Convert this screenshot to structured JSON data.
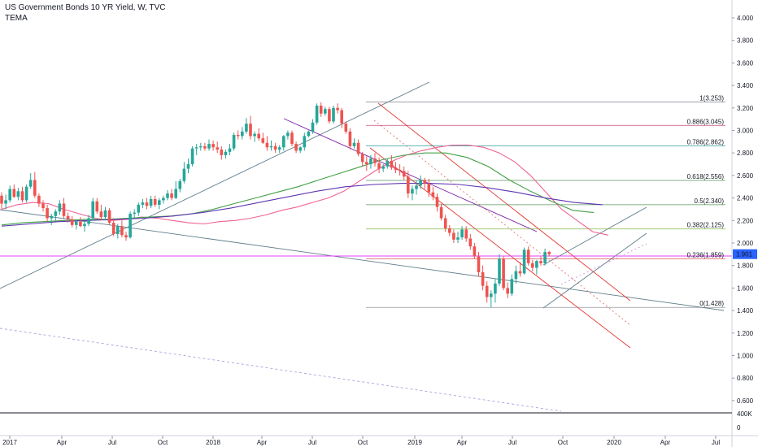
{
  "header": {
    "title": "US Government Bonds 10 YR Yield, W, TVC",
    "indicator": "TEMA"
  },
  "chart_data": {
    "type": "candlestick",
    "symbol": "US Government Bonds 10 YR Yield",
    "interval": "W",
    "source": "TVC",
    "indicator": "TEMA",
    "ylim": [
      0.5,
      4.1
    ],
    "y_ticks": [
      "4.000",
      "3.800",
      "3.600",
      "3.400",
      "3.200",
      "3.000",
      "2.800",
      "2.600",
      "2.400",
      "2.200",
      "2.000",
      "1.800",
      "1.600",
      "1.400",
      "1.200",
      "1.000",
      "0.800",
      "0.600"
    ],
    "x_ticks": [
      "2017",
      "Apr",
      "Jul",
      "Oct",
      "2018",
      "Apr",
      "Jul",
      "Oct",
      "2019",
      "Apr",
      "Jul",
      "Oct",
      "2020",
      "Apr",
      "Jul"
    ],
    "last_price": "1.901",
    "volume_scale_labels": [
      "400K",
      "0"
    ],
    "colors": {
      "up": "#26a69a",
      "down": "#ef5350",
      "last_price": "#2962ff"
    },
    "fibonacci": [
      {
        "ratio": "1",
        "value": 3.253,
        "label": "1(3.253)",
        "color": "#787b86"
      },
      {
        "ratio": "0.886",
        "value": 3.045,
        "label": "0.886(3.045)",
        "color": "#c2185b"
      },
      {
        "ratio": "0.786",
        "value": 2.862,
        "label": "0.786(2.862)",
        "color": "#00838f"
      },
      {
        "ratio": "0.618",
        "value": 2.556,
        "label": "0.618(2.556)",
        "color": "#2e7d32"
      },
      {
        "ratio": "0.5",
        "value": 2.34,
        "label": "0.5(2.340)",
        "color": "#2e7d32"
      },
      {
        "ratio": "0.382",
        "value": 2.125,
        "label": "0.382(2.125)",
        "color": "#7cb342"
      },
      {
        "ratio": "0.236",
        "value": 1.859,
        "label": "0.236(1.859)",
        "color": "#d32f2f"
      },
      {
        "ratio": "0",
        "value": 1.428,
        "label": "0(1.428)",
        "color": "#787b86"
      }
    ],
    "candles": [
      [
        2.42,
        2.45,
        2.3,
        2.35
      ],
      [
        2.35,
        2.43,
        2.3,
        2.38
      ],
      [
        2.38,
        2.51,
        2.36,
        2.48
      ],
      [
        2.48,
        2.52,
        2.4,
        2.41
      ],
      [
        2.41,
        2.49,
        2.38,
        2.46
      ],
      [
        2.46,
        2.5,
        2.36,
        2.38
      ],
      [
        2.38,
        2.52,
        2.36,
        2.5
      ],
      [
        2.5,
        2.62,
        2.48,
        2.56
      ],
      [
        2.56,
        2.63,
        2.4,
        2.42
      ],
      [
        2.42,
        2.44,
        2.32,
        2.35
      ],
      [
        2.35,
        2.38,
        2.28,
        2.31
      ],
      [
        2.31,
        2.34,
        2.19,
        2.22
      ],
      [
        2.22,
        2.26,
        2.16,
        2.24
      ],
      [
        2.24,
        2.3,
        2.2,
        2.28
      ],
      [
        2.28,
        2.38,
        2.25,
        2.35
      ],
      [
        2.35,
        2.4,
        2.22,
        2.24
      ],
      [
        2.24,
        2.27,
        2.18,
        2.21
      ],
      [
        2.21,
        2.24,
        2.14,
        2.16
      ],
      [
        2.16,
        2.2,
        2.12,
        2.19
      ],
      [
        2.19,
        2.23,
        2.14,
        2.15
      ],
      [
        2.15,
        2.19,
        2.1,
        2.17
      ],
      [
        2.17,
        2.25,
        2.15,
        2.22
      ],
      [
        2.22,
        2.4,
        2.2,
        2.37
      ],
      [
        2.37,
        2.4,
        2.26,
        2.28
      ],
      [
        2.28,
        2.34,
        2.2,
        2.23
      ],
      [
        2.23,
        2.32,
        2.2,
        2.29
      ],
      [
        2.29,
        2.31,
        2.16,
        2.18
      ],
      [
        2.18,
        2.22,
        2.06,
        2.08
      ],
      [
        2.08,
        2.17,
        2.04,
        2.15
      ],
      [
        2.15,
        2.2,
        2.05,
        2.07
      ],
      [
        2.07,
        2.1,
        2.02,
        2.05
      ],
      [
        2.05,
        2.28,
        2.04,
        2.26
      ],
      [
        2.26,
        2.3,
        2.22,
        2.27
      ],
      [
        2.27,
        2.36,
        2.24,
        2.34
      ],
      [
        2.34,
        2.39,
        2.31,
        2.36
      ],
      [
        2.36,
        2.4,
        2.3,
        2.33
      ],
      [
        2.33,
        2.42,
        2.31,
        2.39
      ],
      [
        2.39,
        2.42,
        2.32,
        2.34
      ],
      [
        2.34,
        2.4,
        2.3,
        2.38
      ],
      [
        2.38,
        2.42,
        2.35,
        2.4
      ],
      [
        2.4,
        2.47,
        2.38,
        2.44
      ],
      [
        2.44,
        2.48,
        2.38,
        2.4
      ],
      [
        2.4,
        2.55,
        2.39,
        2.48
      ],
      [
        2.48,
        2.57,
        2.45,
        2.55
      ],
      [
        2.55,
        2.72,
        2.53,
        2.66
      ],
      [
        2.66,
        2.75,
        2.62,
        2.7
      ],
      [
        2.7,
        2.86,
        2.68,
        2.84
      ],
      [
        2.84,
        2.88,
        2.78,
        2.85
      ],
      [
        2.85,
        2.89,
        2.82,
        2.86
      ],
      [
        2.86,
        2.89,
        2.82,
        2.84
      ],
      [
        2.84,
        2.92,
        2.82,
        2.88
      ],
      [
        2.88,
        2.91,
        2.82,
        2.85
      ],
      [
        2.85,
        2.9,
        2.8,
        2.83
      ],
      [
        2.83,
        2.86,
        2.74,
        2.78
      ],
      [
        2.78,
        2.83,
        2.75,
        2.81
      ],
      [
        2.81,
        2.88,
        2.78,
        2.84
      ],
      [
        2.84,
        2.98,
        2.82,
        2.96
      ],
      [
        2.96,
        3.0,
        2.92,
        2.95
      ],
      [
        2.95,
        3.03,
        2.92,
        2.99
      ],
      [
        2.99,
        3.11,
        2.97,
        3.06
      ],
      [
        3.06,
        3.13,
        2.92,
        2.95
      ],
      [
        2.95,
        2.99,
        2.9,
        2.97
      ],
      [
        2.97,
        3.02,
        2.91,
        2.93
      ],
      [
        2.93,
        2.98,
        2.88,
        2.89
      ],
      [
        2.89,
        2.95,
        2.82,
        2.85
      ],
      [
        2.85,
        2.91,
        2.82,
        2.86
      ],
      [
        2.86,
        2.89,
        2.8,
        2.83
      ],
      [
        2.83,
        2.87,
        2.8,
        2.85
      ],
      [
        2.85,
        2.96,
        2.82,
        2.95
      ],
      [
        2.95,
        3.0,
        2.92,
        2.98
      ],
      [
        2.98,
        3.0,
        2.86,
        2.88
      ],
      [
        2.88,
        2.9,
        2.8,
        2.82
      ],
      [
        2.82,
        2.86,
        2.8,
        2.85
      ],
      [
        2.85,
        2.98,
        2.82,
        2.95
      ],
      [
        2.95,
        3.0,
        2.94,
        2.99
      ],
      [
        2.99,
        3.1,
        2.97,
        3.07
      ],
      [
        3.07,
        3.24,
        3.05,
        3.22
      ],
      [
        3.22,
        3.25,
        3.12,
        3.15
      ],
      [
        3.15,
        3.21,
        3.13,
        3.19
      ],
      [
        3.19,
        3.21,
        3.06,
        3.08
      ],
      [
        3.08,
        3.22,
        3.06,
        3.2
      ],
      [
        3.2,
        3.24,
        3.15,
        3.18
      ],
      [
        3.18,
        3.2,
        3.02,
        3.06
      ],
      [
        3.06,
        3.08,
        2.97,
        2.99
      ],
      [
        2.99,
        3.02,
        2.83,
        2.86
      ],
      [
        2.86,
        2.93,
        2.84,
        2.89
      ],
      [
        2.89,
        2.92,
        2.77,
        2.79
      ],
      [
        2.79,
        2.81,
        2.68,
        2.72
      ],
      [
        2.72,
        2.77,
        2.64,
        2.7
      ],
      [
        2.7,
        2.78,
        2.66,
        2.75
      ],
      [
        2.75,
        2.8,
        2.68,
        2.71
      ],
      [
        2.71,
        2.76,
        2.62,
        2.66
      ],
      [
        2.66,
        2.7,
        2.63,
        2.68
      ],
      [
        2.68,
        2.75,
        2.66,
        2.73
      ],
      [
        2.73,
        2.78,
        2.65,
        2.67
      ],
      [
        2.67,
        2.72,
        2.62,
        2.65
      ],
      [
        2.65,
        2.7,
        2.6,
        2.64
      ],
      [
        2.64,
        2.68,
        2.56,
        2.59
      ],
      [
        2.59,
        2.64,
        2.4,
        2.44
      ],
      [
        2.44,
        2.51,
        2.38,
        2.48
      ],
      [
        2.48,
        2.56,
        2.43,
        2.51
      ],
      [
        2.51,
        2.6,
        2.48,
        2.56
      ],
      [
        2.56,
        2.58,
        2.48,
        2.53
      ],
      [
        2.53,
        2.57,
        2.41,
        2.45
      ],
      [
        2.45,
        2.5,
        2.38,
        2.41
      ],
      [
        2.41,
        2.44,
        2.28,
        2.32
      ],
      [
        2.32,
        2.35,
        2.2,
        2.22
      ],
      [
        2.22,
        2.25,
        2.1,
        2.13
      ],
      [
        2.13,
        2.16,
        2.06,
        2.09
      ],
      [
        2.09,
        2.12,
        2.0,
        2.03
      ],
      [
        2.03,
        2.1,
        2.0,
        2.05
      ],
      [
        2.05,
        2.15,
        2.03,
        2.12
      ],
      [
        2.12,
        2.15,
        2.01,
        2.04
      ],
      [
        2.04,
        2.08,
        1.94,
        1.97
      ],
      [
        1.97,
        2.0,
        1.86,
        1.88
      ],
      [
        1.88,
        1.92,
        1.7,
        1.74
      ],
      [
        1.74,
        1.8,
        1.58,
        1.62
      ],
      [
        1.62,
        1.66,
        1.47,
        1.52
      ],
      [
        1.52,
        1.58,
        1.43,
        1.55
      ],
      [
        1.55,
        1.68,
        1.47,
        1.64
      ],
      [
        1.64,
        1.9,
        1.62,
        1.86
      ],
      [
        1.86,
        1.88,
        1.58,
        1.6
      ],
      [
        1.6,
        1.65,
        1.51,
        1.55
      ],
      [
        1.55,
        1.72,
        1.53,
        1.68
      ],
      [
        1.68,
        1.8,
        1.64,
        1.75
      ],
      [
        1.75,
        1.83,
        1.7,
        1.73
      ],
      [
        1.73,
        1.96,
        1.72,
        1.94
      ],
      [
        1.94,
        1.97,
        1.8,
        1.82
      ],
      [
        1.82,
        1.85,
        1.75,
        1.78
      ],
      [
        1.78,
        1.85,
        1.72,
        1.84
      ],
      [
        1.84,
        1.88,
        1.8,
        1.82
      ],
      [
        1.82,
        1.95,
        1.8,
        1.92
      ],
      [
        1.92,
        1.93,
        1.88,
        1.9
      ]
    ],
    "tema": [
      2.3,
      2.34,
      2.36,
      2.35,
      2.3,
      2.26,
      2.22,
      2.2,
      2.21,
      2.23,
      2.22,
      2.2,
      2.18,
      2.17,
      2.19,
      2.2,
      2.22,
      2.25,
      2.29,
      2.32,
      2.36,
      2.4,
      2.46,
      2.55,
      2.64,
      2.72,
      2.78,
      2.82,
      2.85,
      2.87,
      2.87,
      2.85,
      2.8,
      2.72,
      2.6,
      2.45,
      2.3,
      2.2,
      2.1,
      2.07
    ],
    "sma_green": [
      2.16,
      2.18,
      2.19,
      2.2,
      2.21,
      2.21,
      2.22,
      2.23,
      2.24,
      2.26,
      2.3,
      2.35,
      2.4,
      2.45,
      2.5,
      2.56,
      2.62,
      2.68,
      2.74,
      2.78,
      2.8,
      2.8,
      2.76,
      2.68,
      2.56,
      2.46,
      2.37,
      2.29,
      2.27
    ],
    "sma_purple": [
      2.15,
      2.17,
      2.19,
      2.2,
      2.21,
      2.22,
      2.24,
      2.27,
      2.31,
      2.36,
      2.41,
      2.46,
      2.5,
      2.52,
      2.53,
      2.53,
      2.52,
      2.49,
      2.45,
      2.4,
      2.36,
      2.34
    ]
  }
}
